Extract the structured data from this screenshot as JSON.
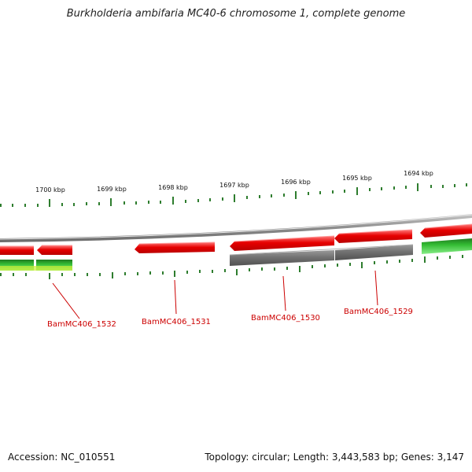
{
  "title": "Burkholderia ambifaria MC40-6 chromosome 1, complete genome",
  "footer": {
    "accession_label": "Accession:",
    "accession": "NC_010551",
    "topology_label": "Topology:",
    "topology": "circular",
    "length_label": "Length:",
    "length": "3,443,583 bp",
    "genes_label": "Genes:",
    "genes": "3,147"
  },
  "ticks": [
    {
      "label": "1700 kbp"
    },
    {
      "label": "1699 kbp"
    },
    {
      "label": "1698 kbp"
    },
    {
      "label": "1697 kbp"
    },
    {
      "label": "1696 kbp"
    },
    {
      "label": "1695 kbp"
    },
    {
      "label": "1694 kbp"
    }
  ],
  "genes": [
    {
      "label": "BamMC406_1532"
    },
    {
      "label": "BamMC406_1531"
    },
    {
      "label": "BamMC406_1530"
    },
    {
      "label": "BamMC406_1529"
    }
  ],
  "colors": {
    "forward_feature": "#e60000",
    "feature_highlight": "#ff6666",
    "backbone": "#8c8c8c",
    "gray_feature": "#6e6e6e",
    "green_feature": "#33bb33",
    "green_dark": "#1f7a1f",
    "yellow_green": "#ccee33",
    "tick": "#2e7d2e",
    "gene_label": "#cc0000"
  }
}
